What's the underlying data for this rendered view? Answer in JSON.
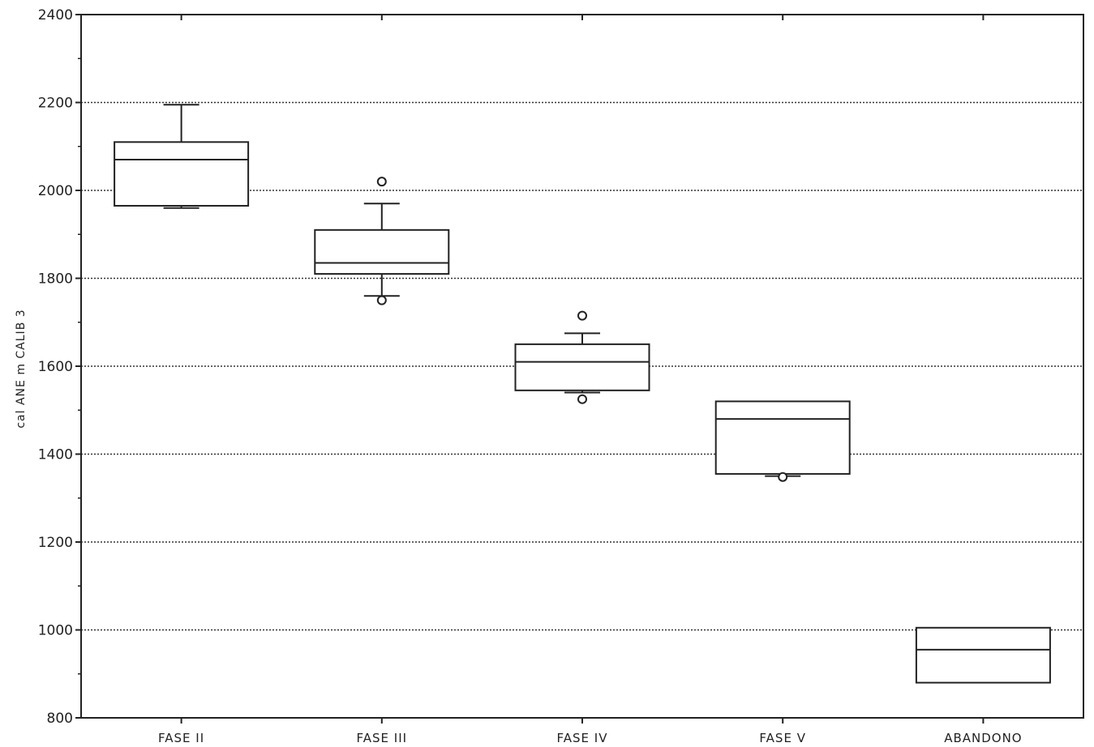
{
  "chart_data": {
    "type": "boxplot",
    "title": "",
    "xlabel": "",
    "ylabel": "cal ANE m CALIB 3",
    "ylim": [
      800,
      2400
    ],
    "yticks": [
      800,
      1000,
      1200,
      1400,
      1600,
      1800,
      2000,
      2200,
      2400
    ],
    "grid": "horizontal-dotted",
    "categories": [
      "FASE II",
      "FASE III",
      "FASE IV",
      "FASE V",
      "ABANDONO"
    ],
    "boxes": [
      {
        "category": "FASE II",
        "whisker_low": 1960,
        "q1": 1965,
        "median": 2070,
        "q3": 2110,
        "whisker_high": 2195,
        "outliers": []
      },
      {
        "category": "FASE III",
        "whisker_low": 1760,
        "q1": 1810,
        "median": 1835,
        "q3": 1910,
        "whisker_high": 1970,
        "outliers": [
          2020,
          1750
        ]
      },
      {
        "category": "FASE IV",
        "whisker_low": 1540,
        "q1": 1545,
        "median": 1610,
        "q3": 1650,
        "whisker_high": 1675,
        "outliers": [
          1715,
          1525
        ]
      },
      {
        "category": "FASE V",
        "whisker_low": 1350,
        "q1": 1355,
        "median": 1480,
        "q3": 1520,
        "whisker_high": 1520,
        "outliers": [
          1348
        ]
      },
      {
        "category": "ABANDONO",
        "whisker_low": 880,
        "q1": 880,
        "median": 955,
        "q3": 1005,
        "whisker_high": 1005,
        "outliers": []
      }
    ]
  }
}
